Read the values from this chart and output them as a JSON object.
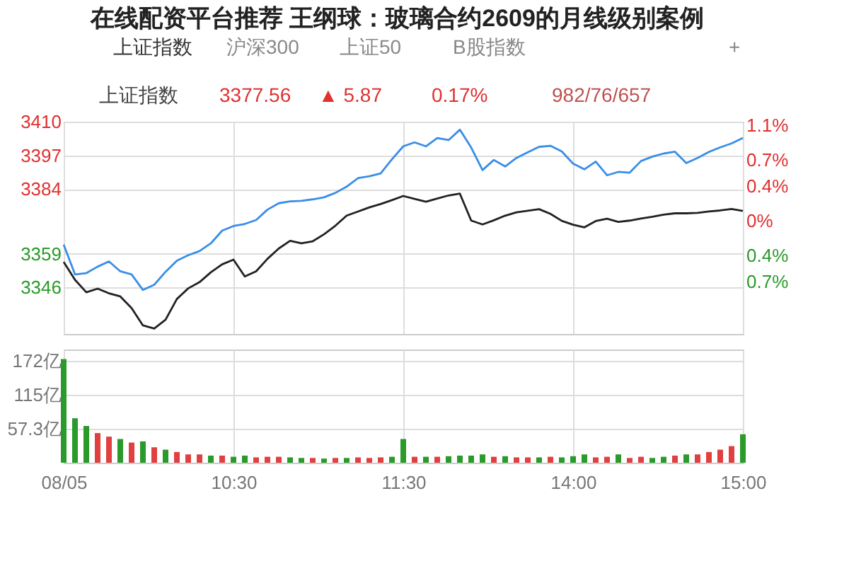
{
  "chart_data": [
    {
      "type": "line",
      "title": "在线配资平台推荐 王纲球：玻璃合约2609的月线级别案例",
      "annotations": [
        "上证指数",
        "沪深300",
        "上证50",
        "B股指数",
        "+",
        "上证指数",
        "3377.56",
        "▲ 5.87",
        "0.17%",
        "982/76/657"
      ],
      "categories": [
        null,
        null,
        null,
        null,
        null,
        null,
        null,
        null,
        null,
        null,
        null,
        null,
        null,
        null,
        null,
        null,
        null,
        null,
        null,
        null,
        null,
        null,
        null,
        null,
        null,
        null,
        null,
        null,
        null,
        null,
        null,
        null,
        null,
        null,
        null,
        null,
        null,
        null,
        null,
        null,
        null,
        null,
        null,
        null,
        null,
        null,
        null,
        null,
        null,
        null,
        null,
        null,
        null,
        null,
        null,
        null,
        null,
        null,
        null,
        null,
        null
      ],
      "ylim": [
        3328,
        3410
      ],
      "yticks": [
        3346,
        3359,
        3384,
        3397,
        3410
      ],
      "y2lim": [
        -1.3,
        1.14
      ],
      "y2ticks": [
        {
          "value": -0.7,
          "label": "0.7%"
        },
        {
          "value": -0.4,
          "label": "0.4%"
        },
        {
          "value": 0,
          "label": "0%"
        },
        {
          "value": 0.4,
          "label": "0.4%"
        },
        {
          "value": 0.7,
          "label": "0.7%"
        },
        {
          "value": 1.1,
          "label": "1.1%"
        }
      ],
      "grid": true,
      "tick_labels": "y",
      "series": [
        {
          "color": "#3a8ee6",
          "values": [
            3362.5,
            3351,
            3351.5,
            3354,
            3356,
            3352.2,
            3351,
            3345,
            3347,
            3352,
            3356.3,
            3358.4,
            3360,
            3363,
            3367.9,
            3369.7,
            3370.5,
            3372,
            3376,
            3378.5,
            3379.2,
            3379.4,
            3380,
            3380.8,
            3382.5,
            3384.9,
            3388.2,
            3388.9,
            3390,
            3395.5,
            3400.5,
            3402,
            3400.5,
            3403.7,
            3402.9,
            3406.9,
            3400,
            3391.3,
            3395.2,
            3392.7,
            3396,
            3398.2,
            3400.3,
            3400.7,
            3398.5,
            3393.8,
            3391.6,
            3394.6,
            3389.3,
            3390.6,
            3390.3,
            3394.8,
            3396.5,
            3397.7,
            3398.4,
            3394,
            3396,
            3398.3,
            3400.1,
            3401.6,
            3403.7
          ]
        },
        {
          "color": "#222222",
          "values": [
            3355.8,
            3348.9,
            3344.1,
            3345.5,
            3343.7,
            3342.5,
            3338,
            3331.3,
            3330.1,
            3333.5,
            3341.5,
            3345.6,
            3348,
            3351.8,
            3354.9,
            3356.7,
            3350.2,
            3352.2,
            3357,
            3361,
            3364,
            3363,
            3363.8,
            3366.5,
            3369.8,
            3373.7,
            3375.3,
            3376.9,
            3378.2,
            3379.7,
            3381.3,
            3380.2,
            3379.1,
            3380.3,
            3381.5,
            3382.2,
            3371.8,
            3370.3,
            3371.9,
            3373.7,
            3375,
            3375.6,
            3376.2,
            3374.4,
            3371.7,
            3370.2,
            3369.2,
            3371.6,
            3372.5,
            3371.3,
            3371.8,
            3372.6,
            3373.3,
            3374.1,
            3374.6,
            3374.6,
            3374.8,
            3375.3,
            3375.7,
            3376.3,
            3375.5
          ]
        }
      ]
    },
    {
      "type": "bar",
      "categories": [
        "08/05",
        null,
        null,
        null,
        null,
        null,
        null,
        null,
        null,
        null,
        null,
        null,
        null,
        null,
        null,
        "10:30",
        null,
        null,
        null,
        null,
        null,
        null,
        null,
        null,
        null,
        null,
        null,
        null,
        null,
        null,
        "11:30",
        null,
        null,
        null,
        null,
        null,
        null,
        null,
        null,
        null,
        null,
        null,
        null,
        null,
        null,
        "14:00",
        null,
        null,
        null,
        null,
        null,
        null,
        null,
        null,
        null,
        null,
        null,
        null,
        null,
        null,
        "15:00"
      ],
      "values": [
        175,
        75,
        62,
        50,
        44,
        40,
        34,
        36,
        26,
        22,
        18,
        14,
        14,
        12,
        12,
        10,
        12,
        9,
        10,
        10,
        9,
        8,
        8,
        7,
        8,
        8,
        9,
        8,
        9,
        10,
        40,
        10,
        10,
        10,
        11,
        12,
        12,
        14,
        10,
        11,
        9,
        9,
        9,
        10,
        9,
        11,
        14,
        9,
        10,
        14,
        8,
        10,
        8,
        10,
        12,
        14,
        14,
        18,
        22,
        28,
        48
      ],
      "colors": [
        "#2a9a2a",
        "#2a9a2a",
        "#2a9a2a",
        "#e04040",
        "#e04040",
        "#2a9a2a",
        "#e04040",
        "#2a9a2a",
        "#e04040",
        "#2a9a2a",
        "#e04040",
        "#e04040",
        "#e04040",
        "#2a9a2a",
        "#e04040",
        "#2a9a2a",
        "#2a9a2a",
        "#e04040",
        "#e04040",
        "#e04040",
        "#2a9a2a",
        "#2a9a2a",
        "#e04040",
        "#2a9a2a",
        "#e04040",
        "#2a9a2a",
        "#e04040",
        "#e04040",
        "#e04040",
        "#2a9a2a",
        "#2a9a2a",
        "#e04040",
        "#2a9a2a",
        "#e04040",
        "#2a9a2a",
        "#2a9a2a",
        "#2a9a2a",
        "#2a9a2a",
        "#e04040",
        "#2a9a2a",
        "#e04040",
        "#e04040",
        "#2a9a2a",
        "#e04040",
        "#2a9a2a",
        "#2a9a2a",
        "#2a9a2a",
        "#e04040",
        "#e04040",
        "#2a9a2a",
        "#e04040",
        "#e04040",
        "#2a9a2a",
        "#2a9a2a",
        "#e04040",
        "#2a9a2a",
        "#e04040",
        "#e04040",
        "#e04040",
        "#e04040",
        "#2a9a2a"
      ],
      "ylim": [
        0,
        191
      ],
      "yticks": [
        {
          "value": 57.3,
          "label": "57.3亿"
        },
        {
          "value": 115,
          "label": "115亿"
        },
        {
          "value": 172,
          "label": "172亿"
        }
      ],
      "grid": true
    }
  ]
}
